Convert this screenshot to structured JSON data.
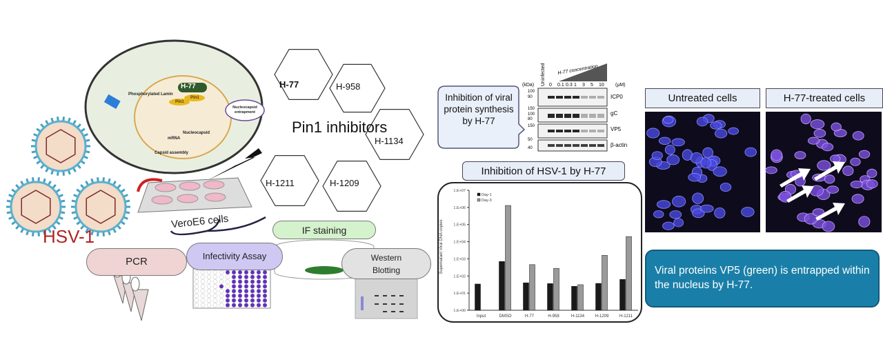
{
  "virus": {
    "label": "HSV-1"
  },
  "cell_diagram": {
    "drug": "H-77",
    "labels": [
      "Phosphorylated Lamin",
      "Pin1",
      "Pin1",
      "Nucleocapsid",
      "mRNA",
      "Capsid assembly",
      "Nucleocapsid entrapment"
    ]
  },
  "plate": {
    "label": "VeroE6 cells"
  },
  "inhibitors": {
    "title": "Pin1 inhibitors",
    "compounds": [
      "H-77",
      "H-958",
      "H-1134",
      "H-1211",
      "H-1209"
    ]
  },
  "assays": {
    "pcr": "PCR",
    "infectivity": "Infectivity Assay",
    "if_staining": "IF staining",
    "western": "Western Blotting"
  },
  "protein_bubble": {
    "text": "Inhibition of viral protein synthesis by H-77"
  },
  "western_blot": {
    "unit_left": "(kDa)",
    "unit_right": "(μM)",
    "lanes": [
      "Uninfected",
      "0",
      "0.1",
      "0.3",
      "1",
      "3",
      "5",
      "10"
    ],
    "gradient_label": "H-77 concentration",
    "markers": [
      "100",
      "90",
      "150",
      "100",
      "80",
      "150",
      "50",
      "40"
    ],
    "bands": [
      "ICP0",
      "gC",
      "VP5",
      "β-actin"
    ]
  },
  "chart_title": "Inhibition of HSV-1 by H-77",
  "chart_data": {
    "type": "bar",
    "categories": [
      "Input",
      "DMSO",
      "H-77",
      "H-958",
      "H-1134",
      "H-1209",
      "H-1211"
    ],
    "series": [
      {
        "name": "Day-1",
        "values": [
          34,
          700,
          40,
          36,
          25,
          37,
          63
        ],
        "color": "#1a1a1a"
      },
      {
        "name": "Day-3",
        "values": [
          null,
          1300000,
          460,
          280,
          31,
          1600,
          20000
        ],
        "color": "#9a9a9a"
      }
    ],
    "ylabel": "Supernatant Viral DNA copies",
    "yscale": "log",
    "ylim": [
      1,
      10000000
    ],
    "yticks": [
      "1.E+00",
      "1.E+01",
      "1.E+02",
      "1.E+03",
      "1.E+04",
      "1.E+05",
      "1.E+06",
      "1.E+07"
    ],
    "legend": "top-left",
    "grid": false,
    "annotations": "* significance markers above treated bars"
  },
  "fluorescence": {
    "untreated": "Untreated cells",
    "treated": "H-77-treated cells"
  },
  "conclusion": "Viral proteins VP5 (green) is entrapped within the nucleus by H-77.",
  "colors": {
    "virus_red": "#b22222",
    "conclusion_bg": "#1a7fa8",
    "nucleus_blue": "#3a3ad8"
  }
}
